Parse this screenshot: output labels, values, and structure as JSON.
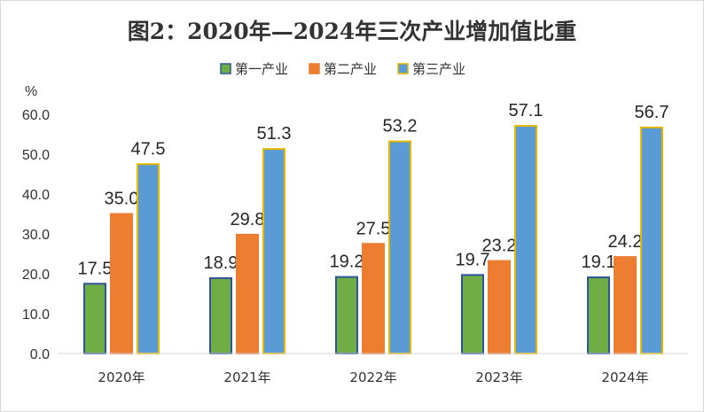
{
  "chart_data": {
    "type": "bar",
    "title": "图2：2020年—2024年三次产业增加值比重",
    "ylabel": "%",
    "xlabel": "",
    "ylim": [
      0,
      60
    ],
    "yticks": [
      "0.0",
      "10.0",
      "20.0",
      "30.0",
      "40.0",
      "50.0",
      "60.0"
    ],
    "grid": false,
    "legend_position": "top",
    "categories": [
      "2020年",
      "2021年",
      "2022年",
      "2023年",
      "2024年"
    ],
    "series": [
      {
        "name": "第一产业",
        "values": [
          17.5,
          18.9,
          19.2,
          19.7,
          19.1
        ],
        "color": "#70ad47",
        "border": "#2e5597"
      },
      {
        "name": "第二产业",
        "values": [
          35.0,
          29.8,
          27.5,
          23.2,
          24.2
        ],
        "color": "#ed7d31",
        "border": "#ed7d31"
      },
      {
        "name": "第三产业",
        "values": [
          47.5,
          51.3,
          53.2,
          57.1,
          56.7
        ],
        "color": "#5b9bd5",
        "border": "#e6b800"
      }
    ]
  }
}
